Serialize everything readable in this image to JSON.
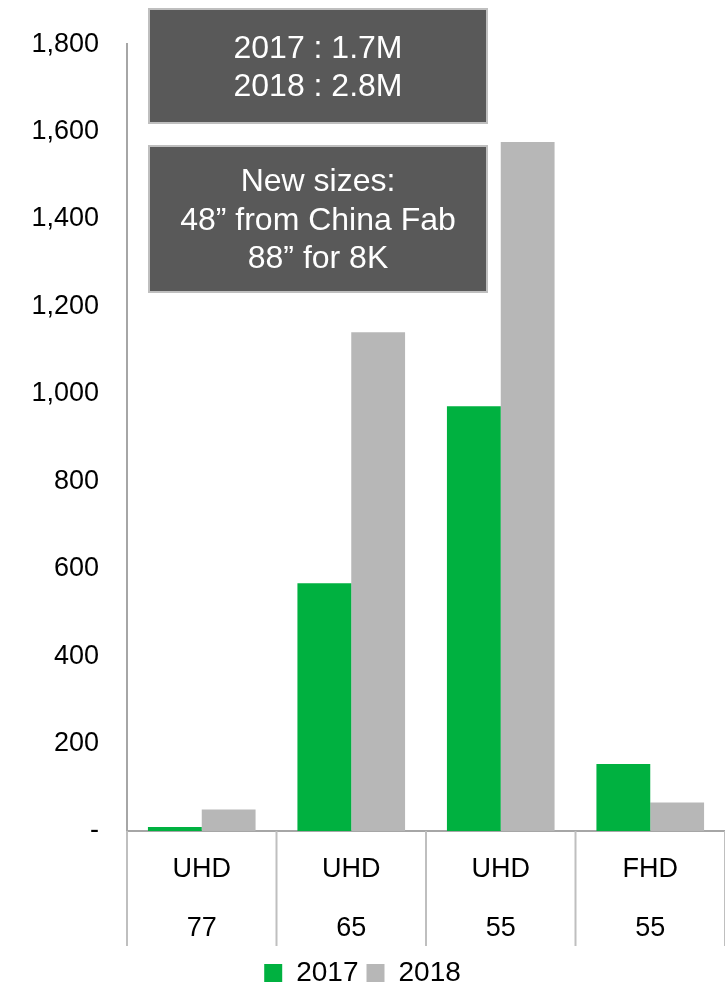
{
  "chart_data": {
    "type": "bar",
    "categories": [
      "UHD\n77",
      "UHD\n65",
      "UHD\n55",
      "FHD\n55"
    ],
    "series": [
      {
        "name": "2017",
        "color": "#00b140",
        "values": [
          9,
          567,
          972,
          153
        ]
      },
      {
        "name": "2018",
        "color": "#b7b7b7",
        "values": [
          49,
          1141,
          1576,
          65
        ]
      }
    ],
    "ylim": [
      0,
      1800
    ],
    "yticks": [
      {
        "value": 0,
        "label": "-"
      },
      {
        "value": 200,
        "label": "200"
      },
      {
        "value": 400,
        "label": "400"
      },
      {
        "value": 600,
        "label": "600"
      },
      {
        "value": 800,
        "label": "800"
      },
      {
        "value": 1000,
        "label": "1,000"
      },
      {
        "value": 1200,
        "label": "1,200"
      },
      {
        "value": 1400,
        "label": "1,400"
      },
      {
        "value": 1600,
        "label": "1,600"
      },
      {
        "value": 1800,
        "label": "1,800"
      }
    ],
    "annotations": [
      "2017 : 1.7M\n2018 : 2.8M",
      "New sizes:\n48” from China Fab\n88” for 8K"
    ],
    "grid": false,
    "legend": "bottom"
  }
}
